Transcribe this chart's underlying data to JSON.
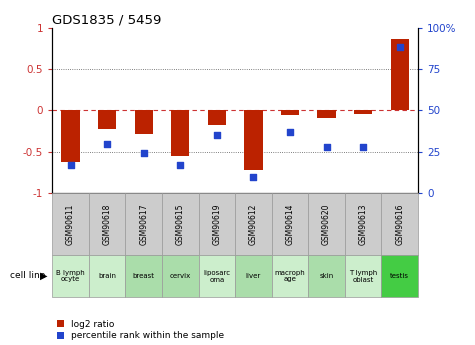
{
  "title": "GDS1835 / 5459",
  "samples": [
    "GSM90611",
    "GSM90618",
    "GSM90617",
    "GSM90615",
    "GSM90619",
    "GSM90612",
    "GSM90614",
    "GSM90620",
    "GSM90613",
    "GSM90616"
  ],
  "cell_lines": [
    "B lymph\nocyte",
    "brain",
    "breast",
    "cervix",
    "liposarc\noma",
    "liver",
    "macroph\nage",
    "skin",
    "T lymph\noblast",
    "testis"
  ],
  "cell_bg_colors": [
    "#cceecc",
    "#cceecc",
    "#aaddaa",
    "#aaddaa",
    "#cceecc",
    "#aaddaa",
    "#cceecc",
    "#aaddaa",
    "#cceecc",
    "#44cc44"
  ],
  "log2_ratio": [
    -0.62,
    -0.22,
    -0.28,
    -0.55,
    -0.18,
    -0.72,
    -0.05,
    -0.09,
    -0.04,
    0.86
  ],
  "percentile_rank": [
    17,
    30,
    24,
    17,
    35,
    10,
    37,
    28,
    28,
    88
  ],
  "ylim": [
    -1,
    1
  ],
  "y2lim": [
    0,
    100
  ],
  "yticks": [
    -1,
    -0.5,
    0,
    0.5,
    1
  ],
  "y2ticks": [
    0,
    25,
    50,
    75,
    100
  ],
  "bar_color": "#bb2200",
  "dot_color": "#2244cc",
  "zero_line_color": "#cc3333",
  "grid_color": "#555555",
  "legend_red": "log2 ratio",
  "legend_blue": "percentile rank within the sample",
  "gsm_bg": "#cccccc",
  "bar_width": 0.5
}
